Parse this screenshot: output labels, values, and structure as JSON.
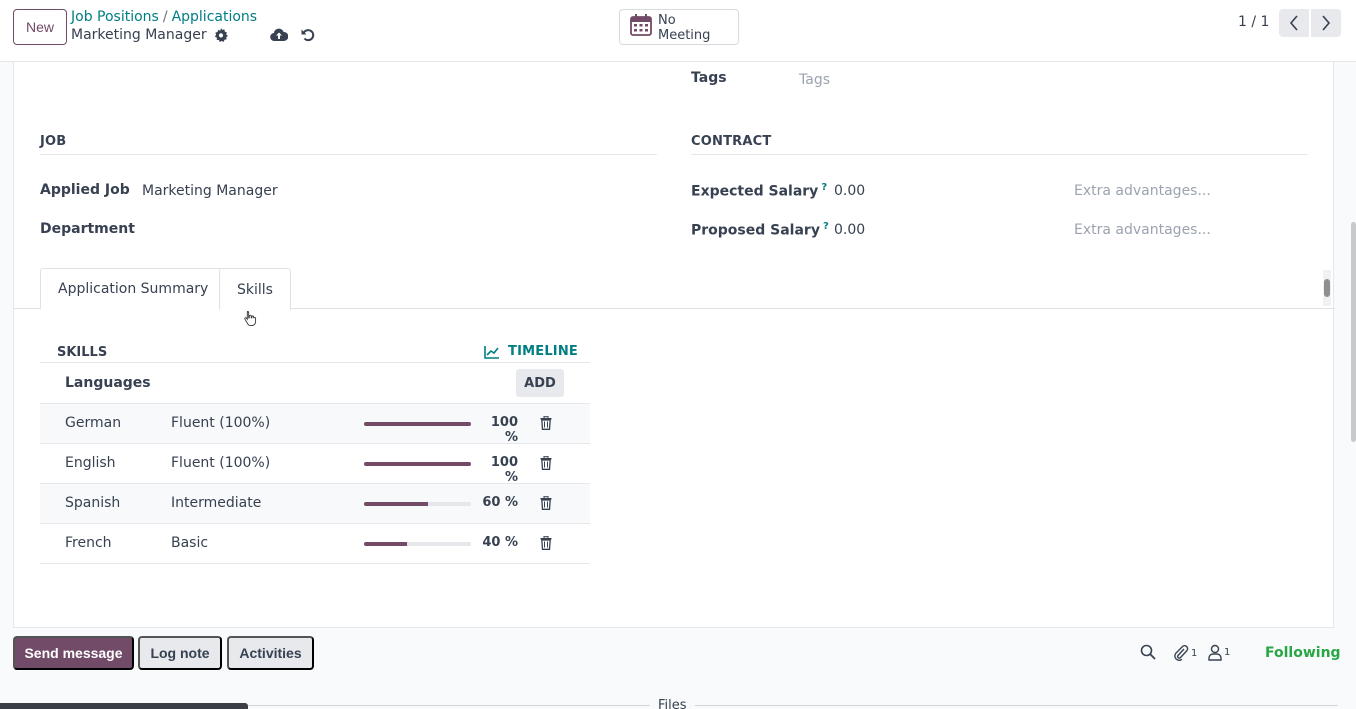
{
  "toolbar": {
    "new_label": "New",
    "breadcrumb": [
      "Job Positions",
      "Applications"
    ],
    "record_name": "Marketing Manager",
    "meeting_label": "No Meeting",
    "pager": "1 / 1"
  },
  "form": {
    "tags_label": "Tags",
    "tags_placeholder": "Tags",
    "job_section": "JOB",
    "contract_section": "CONTRACT",
    "applied_job_label": "Applied Job",
    "applied_job_value": "Marketing Manager",
    "department_label": "Department",
    "expected_salary_label": "Expected Salary",
    "expected_salary_value": "0.00",
    "proposed_salary_label": "Proposed Salary",
    "proposed_salary_value": "0.00",
    "help_mark": "?",
    "extra_placeholder": "Extra advantages..."
  },
  "tabs": [
    {
      "label": "Application Summary",
      "active": false
    },
    {
      "label": "Skills",
      "active": true
    }
  ],
  "skills": {
    "title": "SKILLS",
    "timeline_label": "TIMELINE",
    "group_label": "Languages",
    "add_label": "ADD",
    "rows": [
      {
        "name": "German",
        "level": "Fluent (100%)",
        "percent": 100,
        "percent_label": "100 %"
      },
      {
        "name": "English",
        "level": "Fluent (100%)",
        "percent": 100,
        "percent_label": "100 %"
      },
      {
        "name": "Spanish",
        "level": "Intermediate",
        "percent": 60,
        "percent_label": "60 %"
      },
      {
        "name": "French",
        "level": "Basic",
        "percent": 40,
        "percent_label": "40 %"
      }
    ]
  },
  "chatter": {
    "send_message": "Send message",
    "log_note": "Log note",
    "activities": "Activities",
    "attachments_count": "1",
    "followers_count": "1",
    "following": "Following",
    "files_label": "Files"
  },
  "colors": {
    "primary": "#714b67",
    "link": "#017e84",
    "following": "#28a745"
  }
}
